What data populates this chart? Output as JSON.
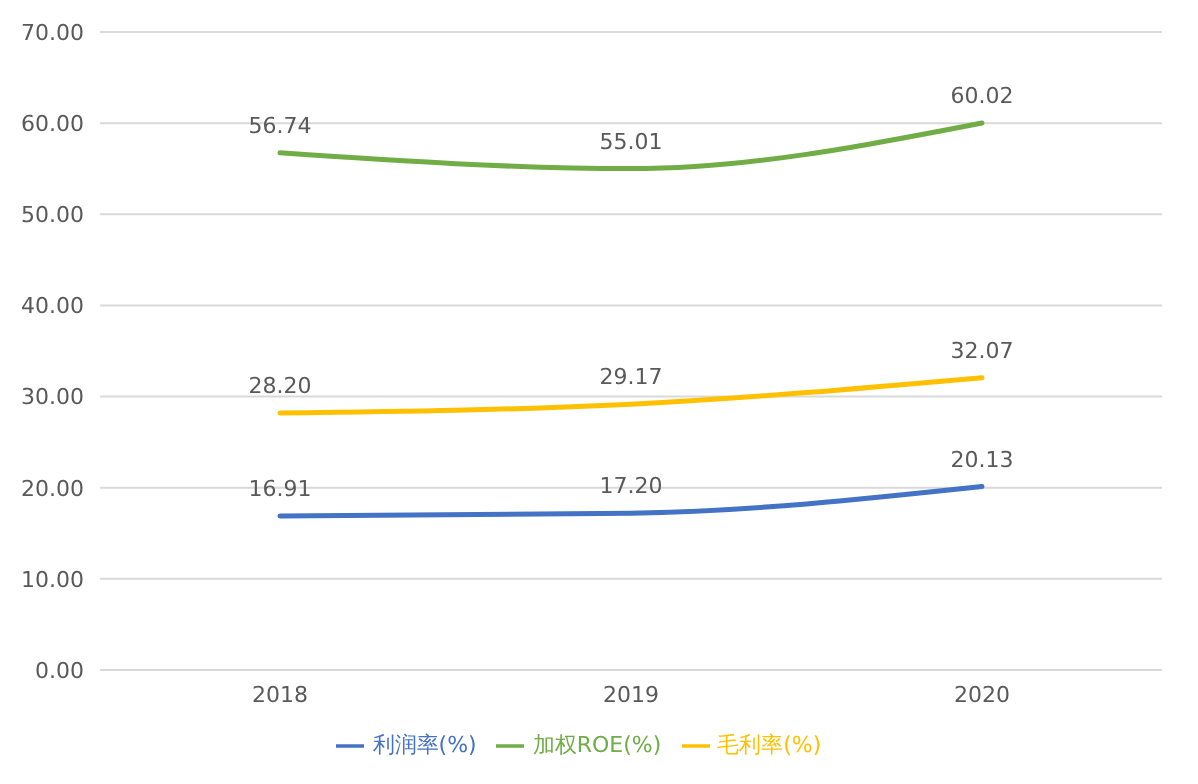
{
  "chart_data": {
    "type": "line",
    "categories": [
      "2018",
      "2019",
      "2020"
    ],
    "series": [
      {
        "name": "加权ROE(%)",
        "color": "#70ad47",
        "values": [
          56.74,
          55.01,
          60.02
        ],
        "value_labels": [
          "56.74",
          "55.01",
          "60.02"
        ]
      },
      {
        "name": "利润率(%)",
        "color": "#4472c4",
        "values": [
          16.91,
          17.2,
          20.13
        ],
        "value_labels": [
          "16.91",
          "17.20",
          "20.13"
        ]
      },
      {
        "name": "毛利率(%)",
        "color": "#ffc000",
        "values": [
          28.2,
          29.17,
          32.07
        ],
        "value_labels": [
          "28.20",
          "29.17",
          "32.07"
        ]
      }
    ],
    "ylim": [
      0,
      70
    ],
    "yticks": [
      {
        "value": 0,
        "label": "0.00"
      },
      {
        "value": 10,
        "label": "10.00"
      },
      {
        "value": 20,
        "label": "20.00"
      },
      {
        "value": 30,
        "label": "30.00"
      },
      {
        "value": 40,
        "label": "40.00"
      },
      {
        "value": 50,
        "label": "50.00"
      },
      {
        "value": 60,
        "label": "60.00"
      },
      {
        "value": 70,
        "label": "70.00"
      }
    ],
    "grid": "y",
    "legend": "bottom",
    "marker": "none",
    "line_style": "solid"
  }
}
